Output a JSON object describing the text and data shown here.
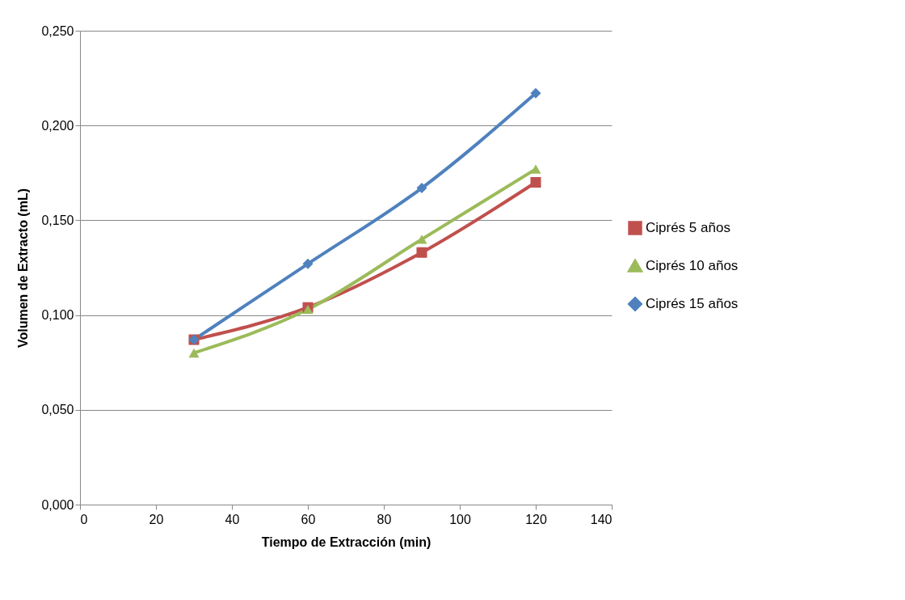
{
  "chart_data": {
    "type": "line",
    "xlabel": "Tiempo de Extracción (min)",
    "ylabel": "Volumen de Extracto (mL)",
    "x": [
      30,
      60,
      90,
      120
    ],
    "series": [
      {
        "name": "Ciprés 5 años",
        "color": "#c0504d",
        "marker": "square",
        "values": [
          0.087,
          0.104,
          0.133,
          0.17
        ]
      },
      {
        "name": "Ciprés 10 años",
        "color": "#9bbb59",
        "marker": "triangle",
        "values": [
          0.08,
          0.103,
          0.14,
          0.177
        ]
      },
      {
        "name": "Ciprés 15 años",
        "color": "#4f81bd",
        "marker": "diamond",
        "values": [
          0.087,
          0.127,
          0.167,
          0.217
        ]
      }
    ],
    "xlim": [
      0,
      140
    ],
    "xticks": [
      0,
      20,
      40,
      60,
      80,
      100,
      120,
      140
    ],
    "ylim": [
      0,
      0.25
    ],
    "yticks": [
      {
        "value": 0,
        "label": "0,000"
      },
      {
        "value": 0.05,
        "label": "0,050"
      },
      {
        "value": 0.1,
        "label": "0,100"
      },
      {
        "value": 0.15,
        "label": "0,150"
      },
      {
        "value": 0.2,
        "label": "0,200"
      },
      {
        "value": 0.25,
        "label": "0,250"
      }
    ],
    "grid": "y",
    "legend": "right",
    "line_style": "solid"
  }
}
